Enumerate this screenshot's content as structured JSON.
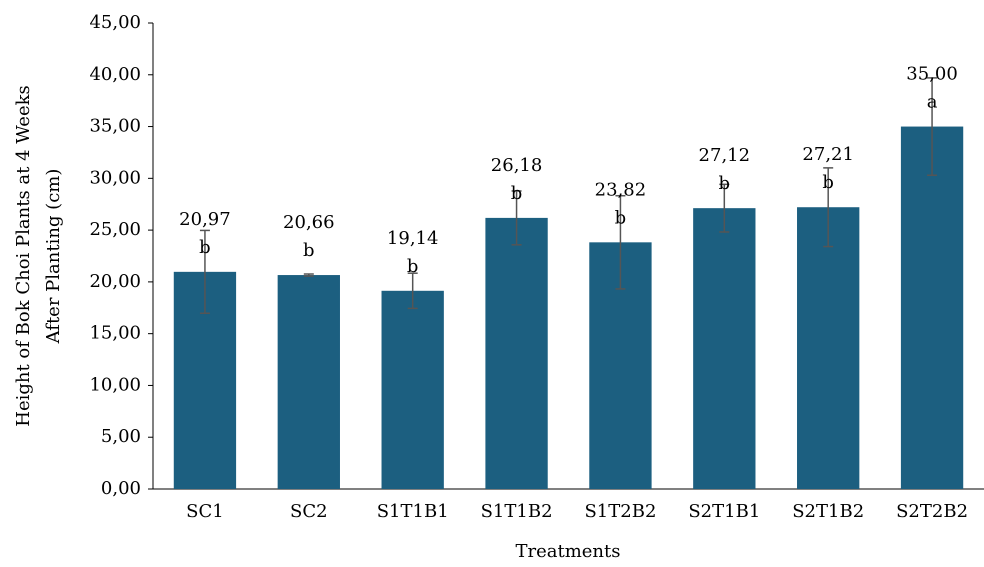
{
  "chart_data": {
    "type": "bar",
    "ylabel": [
      "Height of  Bok Choi  Plants at 4 Weeks",
      "After Planting (cm)"
    ],
    "xlabel": "Treatments",
    "categories": [
      "SC1",
      "SC2",
      "S1T1B1",
      "S1T1B2",
      "S1T2B2",
      "S2T1B1",
      "S2T1B2",
      "S2T2B2"
    ],
    "values": [
      20.97,
      20.66,
      19.14,
      26.18,
      23.82,
      27.12,
      27.21,
      35.0
    ],
    "value_labels": [
      "20,97",
      "20,66",
      "19,14",
      "26,18",
      "23,82",
      "27,12",
      "27,21",
      "35,00"
    ],
    "errors": [
      4.0,
      0.1,
      1.7,
      2.6,
      4.5,
      2.3,
      3.8,
      4.7
    ],
    "letters": [
      "b",
      "b",
      "b",
      "b",
      "b",
      "b",
      "b",
      "a"
    ],
    "color": "#1c5f80",
    "ylim": [
      0,
      45
    ],
    "yticks": [
      {
        "value": 0,
        "label": "0,00"
      },
      {
        "value": 5,
        "label": "5,00"
      },
      {
        "value": 10,
        "label": "10,00"
      },
      {
        "value": 15,
        "label": "15,00"
      },
      {
        "value": 20,
        "label": "20,00"
      },
      {
        "value": 25,
        "label": "25,00"
      },
      {
        "value": 30,
        "label": "30,00"
      },
      {
        "value": 35,
        "label": "35,00"
      },
      {
        "value": 40,
        "label": "40,00"
      },
      {
        "value": 45,
        "label": "45,00"
      }
    ]
  }
}
